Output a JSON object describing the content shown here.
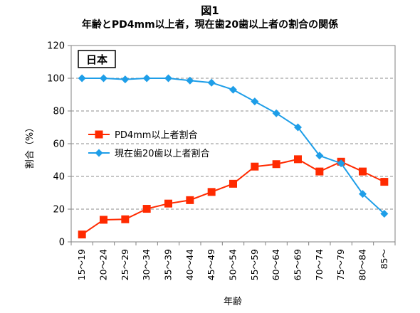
{
  "figure_label": "図1",
  "chart_data": {
    "type": "line",
    "title": "年齢とPD4mm以上者，現在歯20歯以上者の割合の関係",
    "country_label": "日本",
    "xlabel": "年齢",
    "ylabel": "割合（%）",
    "ylim": [
      0,
      120
    ],
    "yticks": [
      "0",
      "20",
      "40",
      "60",
      "80",
      "100",
      "120"
    ],
    "grid": "horizontal-dashed",
    "legend_position": "center-left",
    "categories": [
      "15～19",
      "20～24",
      "25～29",
      "30～34",
      "35～39",
      "40～44",
      "45～49",
      "50～54",
      "55～59",
      "60～64",
      "65～69",
      "70～74",
      "75～79",
      "80～84",
      "85～"
    ],
    "series": [
      {
        "name": "PD4mm以上者割合",
        "color": "#ff2a00",
        "marker": "square",
        "values": [
          4.5,
          13.5,
          13.8,
          20.2,
          23.4,
          25.5,
          30.5,
          35.5,
          46,
          47.5,
          50.5,
          43,
          49,
          43,
          36.7
        ]
      },
      {
        "name": "現在歯20歯以上者割合",
        "color": "#1e9ee8",
        "marker": "diamond",
        "values": [
          100,
          100,
          99.3,
          100,
          100,
          98.6,
          97.3,
          93,
          85.8,
          78.6,
          70,
          52.7,
          48,
          29.3,
          17.2
        ]
      }
    ]
  }
}
